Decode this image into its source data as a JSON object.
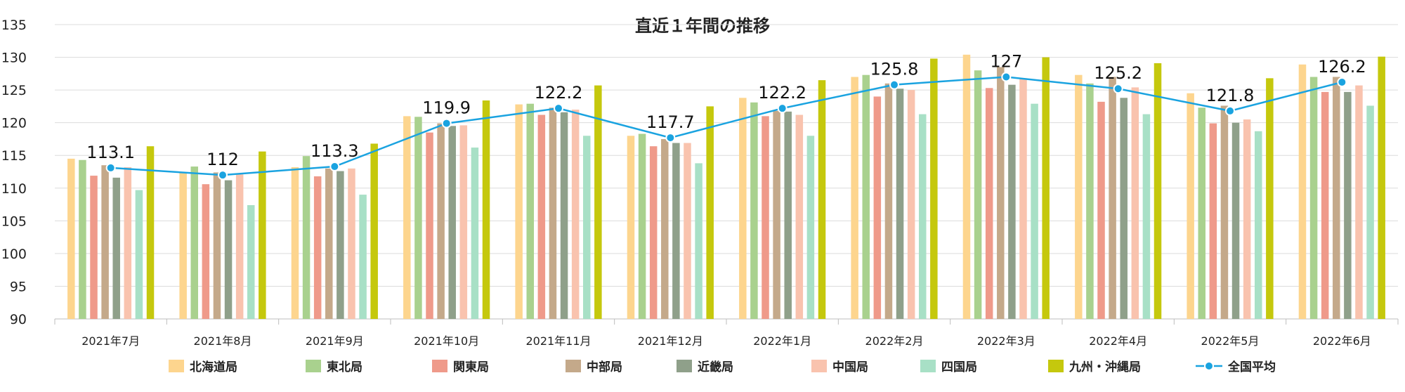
{
  "chart_data": {
    "type": "bar",
    "title": "直近１年間の推移",
    "categories": [
      "2021年7月",
      "2021年8月",
      "2021年9月",
      "2021年10月",
      "2021年11月",
      "2021年12月",
      "2022年1月",
      "2022年2月",
      "2022年3月",
      "2022年4月",
      "2022年5月",
      "2022年6月"
    ],
    "ylim": [
      90,
      135
    ],
    "yticks": [
      90,
      95,
      100,
      105,
      110,
      115,
      120,
      125,
      130,
      135
    ],
    "grid": true,
    "legend_position": "bottom",
    "series": [
      {
        "name": "北海道局",
        "color": "#fdd58e",
        "values": [
          114.5,
          112.3,
          113.2,
          121.0,
          122.8,
          118.0,
          123.8,
          127.0,
          130.4,
          127.3,
          124.5,
          128.9
        ]
      },
      {
        "name": "東北局",
        "color": "#a9d18e",
        "values": [
          114.3,
          113.3,
          114.9,
          120.9,
          122.9,
          118.3,
          123.1,
          127.3,
          128.0,
          126.0,
          122.3,
          127.0
        ]
      },
      {
        "name": "関東局",
        "color": "#ef9a8a",
        "values": [
          111.9,
          110.6,
          111.8,
          118.5,
          121.2,
          116.4,
          121.0,
          124.0,
          125.3,
          123.2,
          119.9,
          124.7
        ]
      },
      {
        "name": "中部局",
        "color": "#c4a98a",
        "values": [
          113.5,
          112.4,
          113.0,
          119.9,
          122.3,
          117.5,
          121.8,
          126.0,
          128.5,
          127.0,
          122.6,
          127.0
        ]
      },
      {
        "name": "近畿局",
        "color": "#8fa08a",
        "values": [
          111.6,
          111.2,
          112.6,
          119.5,
          121.6,
          116.9,
          121.7,
          125.2,
          125.8,
          123.8,
          120.0,
          124.7
        ]
      },
      {
        "name": "中国局",
        "color": "#f9c3ae",
        "values": [
          113.2,
          112.1,
          113.0,
          119.6,
          122.0,
          116.9,
          121.2,
          125.0,
          126.8,
          125.4,
          120.5,
          125.7
        ]
      },
      {
        "name": "四国局",
        "color": "#a8e0c6",
        "values": [
          109.7,
          107.4,
          109.0,
          116.2,
          118.0,
          113.8,
          118.0,
          121.3,
          122.9,
          121.3,
          118.7,
          122.6
        ]
      },
      {
        "name": "九州・沖縄局",
        "color": "#c5c80d",
        "values": [
          116.4,
          115.6,
          116.8,
          123.4,
          125.7,
          122.5,
          126.5,
          129.8,
          130.0,
          129.1,
          126.8,
          130.1
        ]
      }
    ],
    "line": {
      "name": "全国平均",
      "color": "#1aa3e0",
      "values": [
        113.1,
        112,
        113.3,
        119.9,
        122.2,
        117.7,
        122.2,
        125.8,
        127,
        125.2,
        121.8,
        126.2
      ]
    }
  }
}
